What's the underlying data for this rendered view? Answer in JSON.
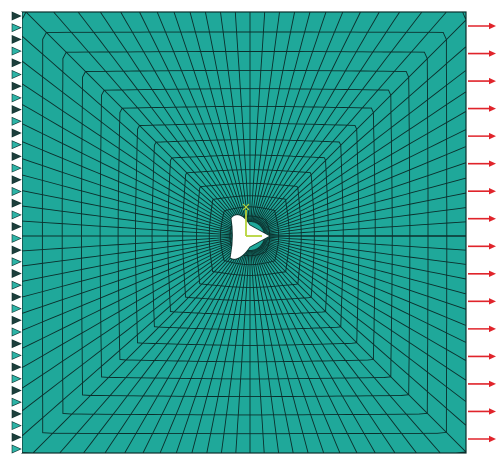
{
  "scene": {
    "type": "finite-element mesh with central crack",
    "mesh_color": "#1fa89a",
    "mesh_line_color": "#0b2f2c",
    "boundary_support": "fixed edge",
    "load_arrow_color": "#e0242b",
    "load_arrow_count": 16,
    "mesh_radial_lines": 96,
    "mesh_rings": 14,
    "crack_label": "",
    "axis_triad": "xy-triad"
  }
}
